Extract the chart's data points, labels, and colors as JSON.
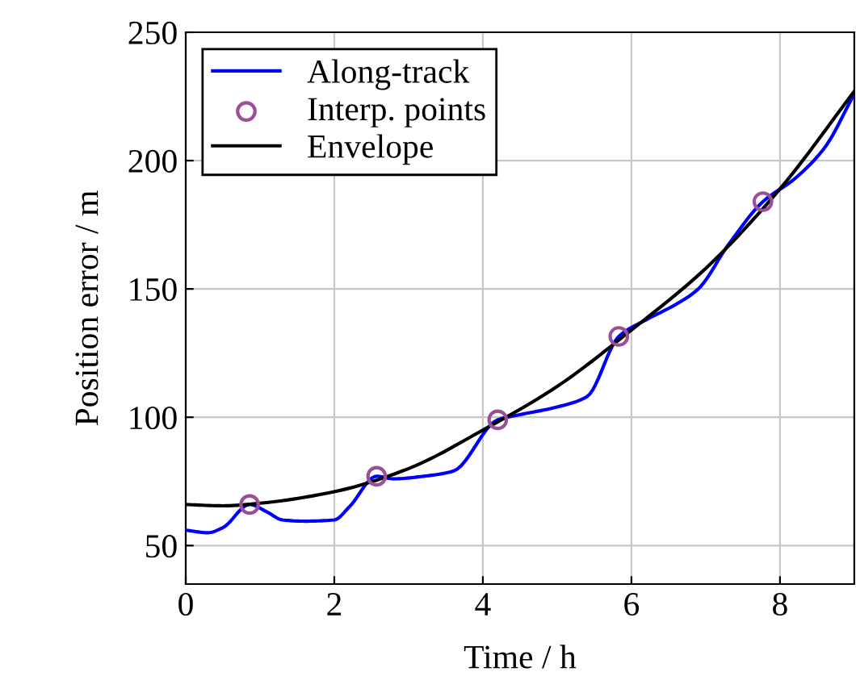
{
  "chart_data": {
    "type": "line",
    "xlabel": "Time / h",
    "ylabel": "Position error / m",
    "xlim": [
      0,
      9
    ],
    "ylim": [
      35,
      250
    ],
    "xticks": [
      0,
      2,
      4,
      6,
      8
    ],
    "yticks": [
      50,
      100,
      150,
      200,
      250
    ],
    "grid": true,
    "legend": "top left",
    "series": [
      {
        "name": "Along-track",
        "color": "#0000ff",
        "x": [
          0,
          0.3,
          0.5,
          0.86,
          1.1,
          1.3,
          1.6,
          2.0,
          2.2,
          2.57,
          2.8,
          3.2,
          3.6,
          4.2,
          4.5,
          5.0,
          5.4,
          5.83,
          6.2,
          6.6,
          6.9,
          7.3,
          7.77,
          8.2,
          8.6,
          9.0
        ],
        "values": [
          56,
          55,
          57,
          66,
          63,
          60,
          59.5,
          60,
          65,
          77,
          76,
          77,
          79,
          99,
          101,
          104,
          108,
          131.5,
          138,
          144,
          150,
          167,
          184,
          193,
          205,
          226
        ]
      },
      {
        "name": "Interp. points",
        "color": "#9b4f96",
        "type": "scatter",
        "marker": "circle",
        "x": [
          0.86,
          2.57,
          4.2,
          5.83,
          7.77
        ],
        "values": [
          66,
          77,
          99,
          131.5,
          184
        ]
      },
      {
        "name": "Envelope",
        "color": "#000000",
        "x": [
          0,
          0.5,
          1,
          2,
          3,
          4,
          5,
          6,
          7,
          8,
          9
        ],
        "values": [
          66,
          65.5,
          66.5,
          71,
          80,
          95,
          112,
          134,
          158,
          189,
          227
        ]
      }
    ]
  }
}
